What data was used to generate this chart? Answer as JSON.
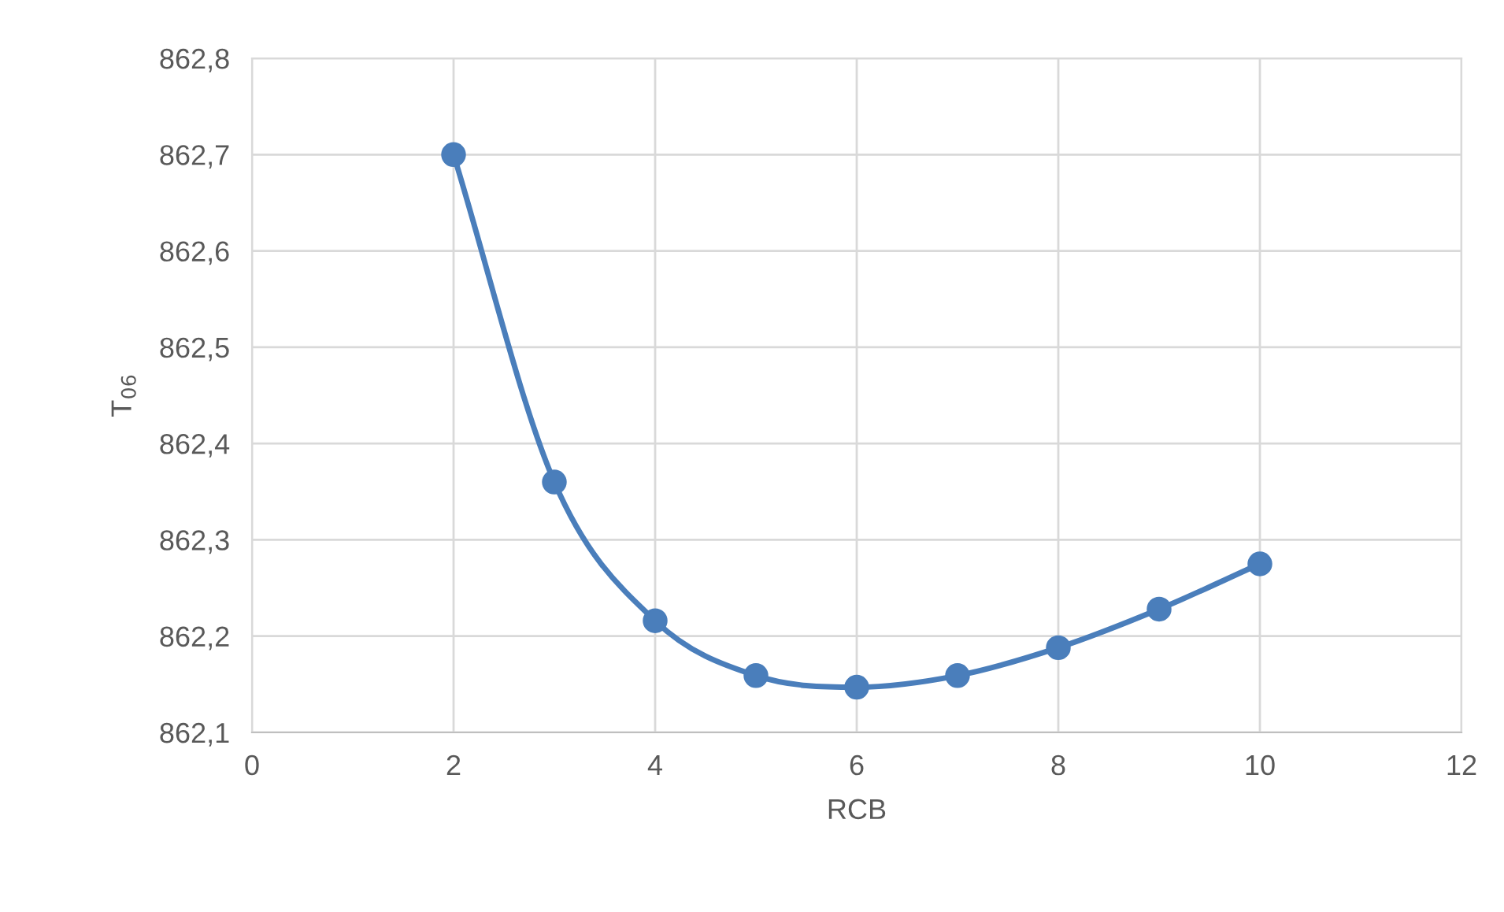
{
  "chart_data": {
    "type": "line",
    "xlabel": "RCB",
    "ylabel": "T$_{06}$",
    "x": [
      2,
      3,
      4,
      5,
      6,
      7,
      8,
      9,
      10
    ],
    "series": [
      {
        "color": "#4a7ebb",
        "values": [
          862.7,
          862.36,
          862.216,
          862.159,
          862.147,
          862.159,
          862.188,
          862.228,
          862.275
        ]
      }
    ],
    "xlim": [
      0,
      12
    ],
    "xticks": [
      0,
      2,
      4,
      6,
      8,
      10,
      12
    ],
    "ylim": [
      862.1,
      862.8
    ],
    "yticks": [
      {
        "value": 862.1,
        "label": "862,1"
      },
      {
        "value": 862.2,
        "label": "862,2"
      },
      {
        "value": 862.3,
        "label": "862,3"
      },
      {
        "value": 862.4,
        "label": "862,4"
      },
      {
        "value": 862.5,
        "label": "862,5"
      },
      {
        "value": 862.6,
        "label": "862,6"
      },
      {
        "value": 862.7,
        "label": "862,7"
      },
      {
        "value": 862.8,
        "label": "862,8"
      }
    ],
    "grid": true,
    "marker": "circle",
    "line_style": "solid"
  }
}
